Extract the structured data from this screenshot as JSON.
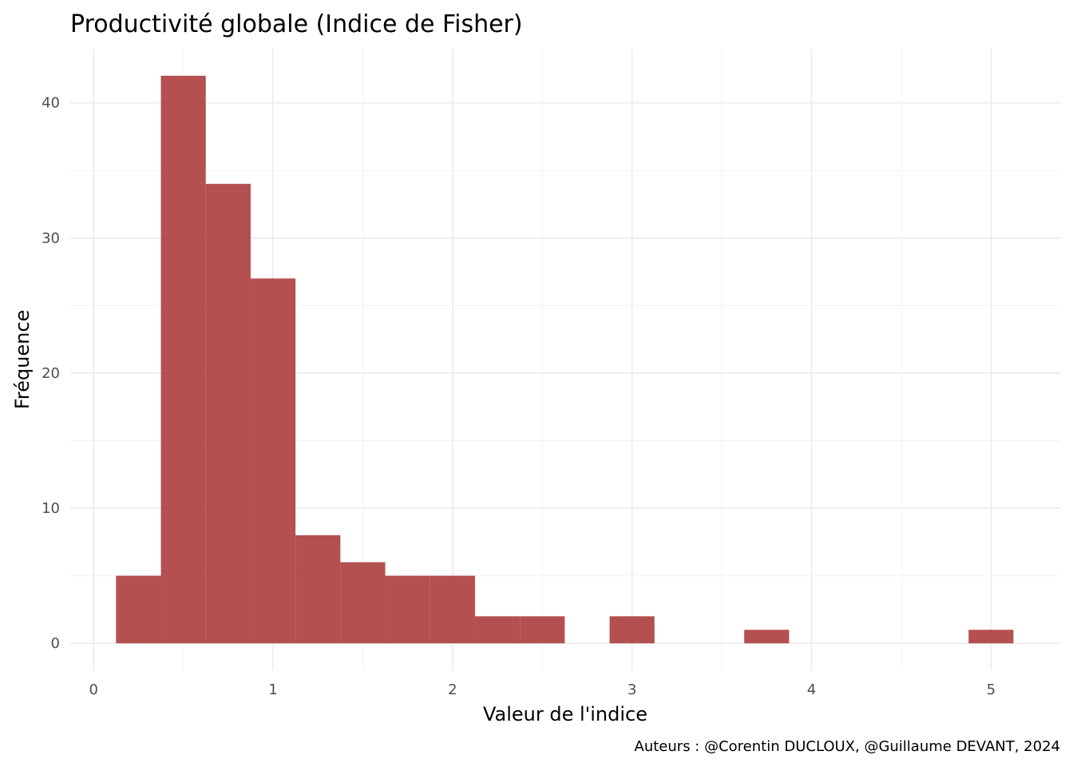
{
  "chart_data": {
    "type": "bar",
    "title": "Productivité globale (Indice de Fisher)",
    "xlabel": "Valeur de l'indice",
    "ylabel": "Fréquence",
    "caption": "Auteurs : @Corentin DUCLOUX, @Guillaume DEVANT, 2024",
    "xlim": [
      -0.13,
      5.39
    ],
    "ylim": [
      -2,
      44
    ],
    "x_ticks": [
      0,
      1,
      2,
      3,
      4,
      5
    ],
    "x_tick_labels": [
      "0",
      "1",
      "2",
      "3",
      "4",
      "5"
    ],
    "y_ticks": [
      0,
      10,
      20,
      30,
      40
    ],
    "y_tick_labels": [
      "0",
      "10",
      "20",
      "30",
      "40"
    ],
    "grid": true,
    "bar_color": "#a52a2a",
    "bins": [
      {
        "x0": 0.125,
        "x1": 0.375,
        "count": 5
      },
      {
        "x0": 0.375,
        "x1": 0.625,
        "count": 42
      },
      {
        "x0": 0.625,
        "x1": 0.875,
        "count": 34
      },
      {
        "x0": 0.875,
        "x1": 1.125,
        "count": 27
      },
      {
        "x0": 1.125,
        "x1": 1.375,
        "count": 8
      },
      {
        "x0": 1.375,
        "x1": 1.625,
        "count": 6
      },
      {
        "x0": 1.625,
        "x1": 1.875,
        "count": 5
      },
      {
        "x0": 1.875,
        "x1": 2.125,
        "count": 5
      },
      {
        "x0": 2.125,
        "x1": 2.375,
        "count": 2
      },
      {
        "x0": 2.375,
        "x1": 2.625,
        "count": 2
      },
      {
        "x0": 2.875,
        "x1": 3.125,
        "count": 2
      },
      {
        "x0": 3.625,
        "x1": 3.875,
        "count": 1
      },
      {
        "x0": 4.875,
        "x1": 5.125,
        "count": 1
      }
    ]
  }
}
